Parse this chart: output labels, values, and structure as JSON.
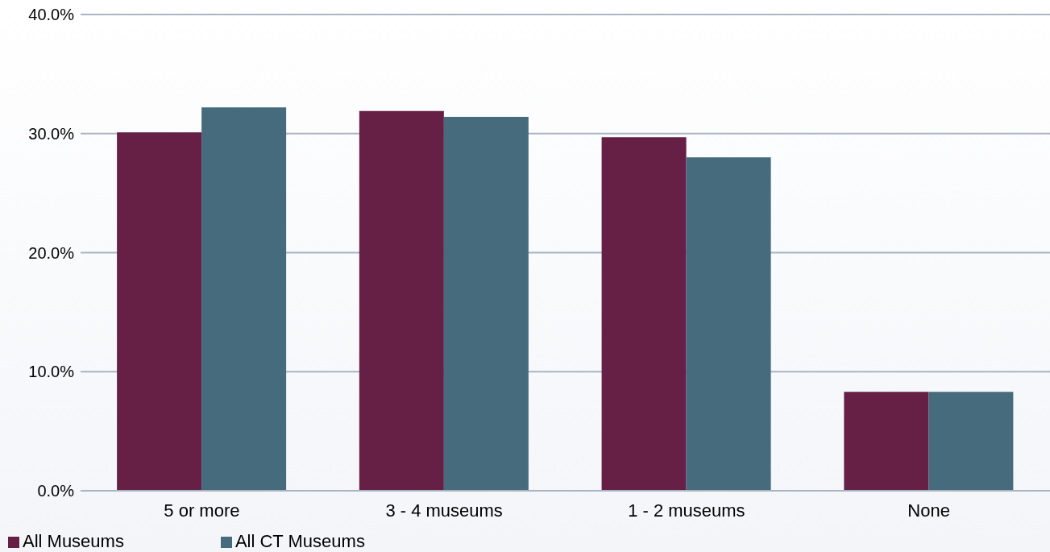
{
  "chart_data": {
    "type": "bar",
    "categories": [
      "5 or more",
      "3 - 4 museums",
      "1 - 2 museums",
      "None"
    ],
    "series": [
      {
        "name": "All Museums",
        "color": "#662046",
        "values": [
          30.1,
          31.9,
          29.7,
          8.3
        ]
      },
      {
        "name": "All CT Museums",
        "color": "#466b7c",
        "values": [
          32.2,
          31.4,
          28.0,
          8.3
        ]
      }
    ],
    "ylim": [
      0,
      40
    ],
    "yticks": [
      {
        "value": 0,
        "label": "0.0%"
      },
      {
        "value": 10,
        "label": "10.0%"
      },
      {
        "value": 20,
        "label": "20.0%"
      },
      {
        "value": 30,
        "label": "30.0%"
      },
      {
        "value": 40,
        "label": "40.0%"
      }
    ],
    "grid": "y",
    "legend": "bottom left"
  }
}
